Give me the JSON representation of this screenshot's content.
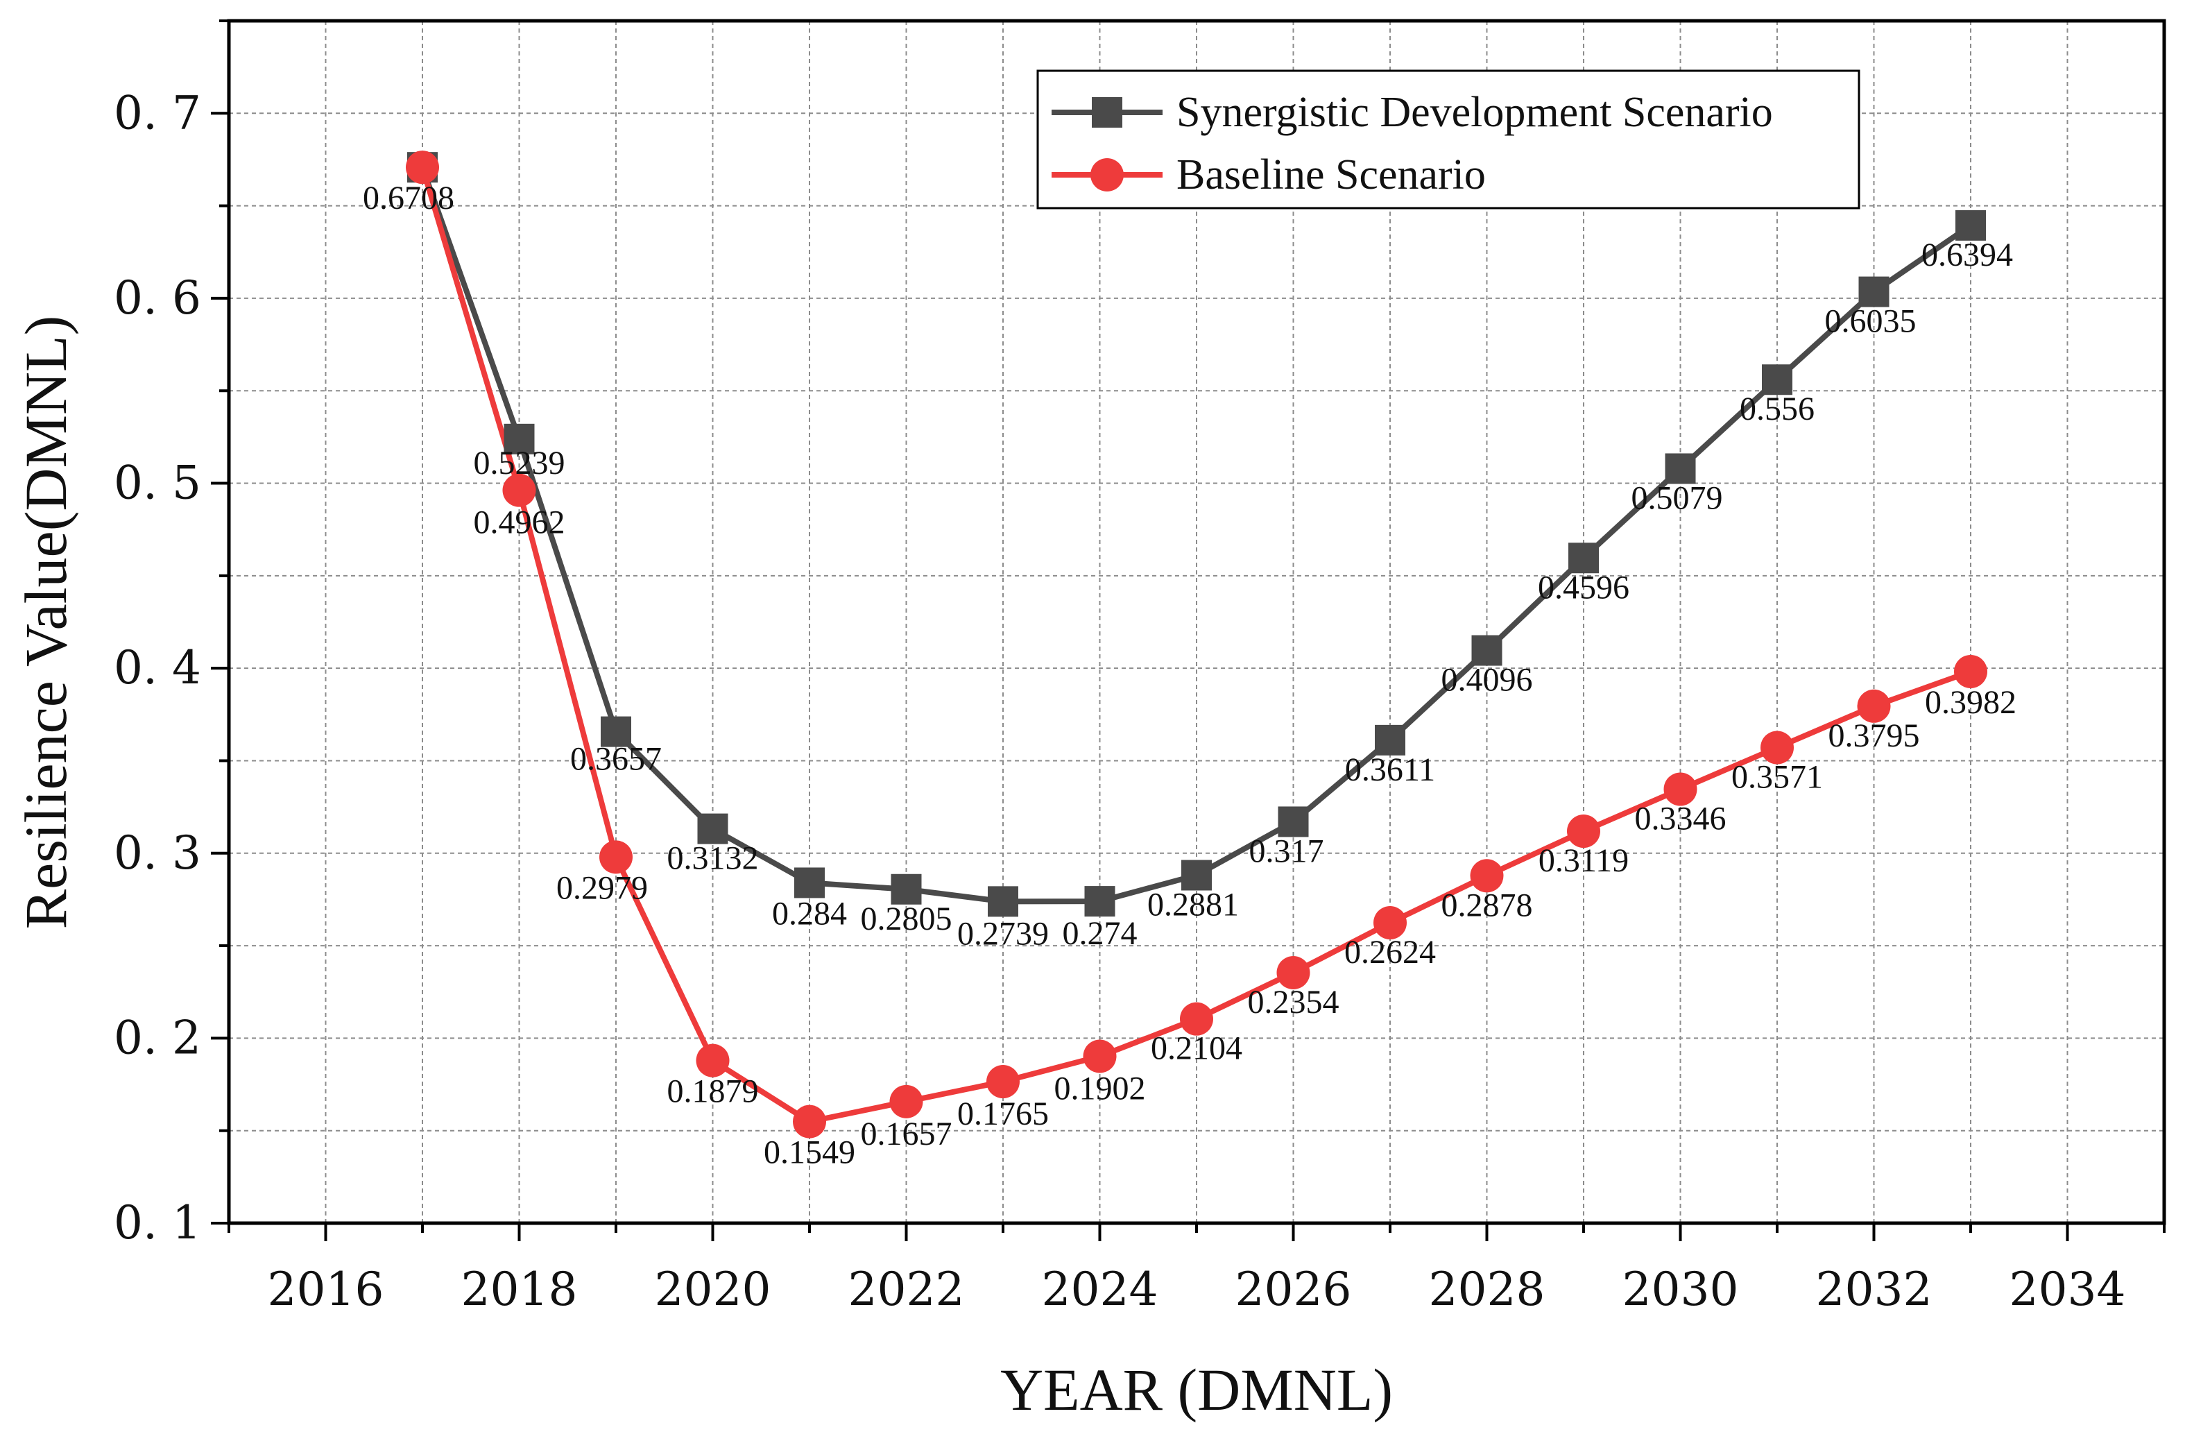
{
  "chart_data": {
    "type": "line",
    "xlabel": "YEAR (DMNL)",
    "ylabel": "Resilience Value(DMNL)",
    "xlim": [
      2015,
      2035
    ],
    "ylim": [
      0.1,
      0.75
    ],
    "xticks": [
      2016,
      2018,
      2020,
      2022,
      2024,
      2026,
      2028,
      2030,
      2032,
      2034
    ],
    "yticks": [
      0.1,
      0.2,
      0.3,
      0.4,
      0.5,
      0.6,
      0.7
    ],
    "ytick_labels": [
      "0. 1",
      "0. 2",
      "0. 3",
      "0. 4",
      "0. 5",
      "0. 6",
      "0. 7"
    ],
    "grid": true,
    "legend_position": "top-right",
    "x": [
      2017,
      2018,
      2019,
      2020,
      2021,
      2022,
      2023,
      2024,
      2025,
      2026,
      2027,
      2028,
      2029,
      2030,
      2031,
      2032,
      2033
    ],
    "series": [
      {
        "name": "Synergistic Development Scenario",
        "marker": "square",
        "color": "#4a4a4a",
        "values": [
          0.6708,
          0.5239,
          0.3657,
          0.3132,
          0.284,
          0.2805,
          0.2739,
          0.274,
          0.2881,
          0.317,
          0.3611,
          0.4096,
          0.4596,
          0.5079,
          0.556,
          0.6035,
          0.6394
        ],
        "labels": [
          "",
          "0.5239",
          "0.3657",
          "0.3132",
          "0.284",
          "0.2805",
          "0.2739",
          "0.274",
          "0.2881",
          "0.317",
          "0.3611",
          "0.4096",
          "0.4596",
          "0.5079",
          "0.556",
          "0.6035",
          "0.6394"
        ]
      },
      {
        "name": "Baseline Scenario",
        "marker": "circle",
        "color": "#ee3b3b",
        "values": [
          0.6708,
          0.4962,
          0.2979,
          0.1879,
          0.1549,
          0.1657,
          0.1765,
          0.1902,
          0.2104,
          0.2354,
          0.2624,
          0.2878,
          0.3119,
          0.3346,
          0.3571,
          0.3795,
          0.3982
        ],
        "labels": [
          "0.6708",
          "0.4962",
          "0.2979",
          "0.1879",
          "0.1549",
          "0.1657",
          "0.1765",
          "0.1902",
          "0.2104",
          "0.2354",
          "0.2624",
          "0.2878",
          "0.3119",
          "0.3346",
          "0.3571",
          "0.3795",
          "0.3982"
        ]
      }
    ]
  }
}
